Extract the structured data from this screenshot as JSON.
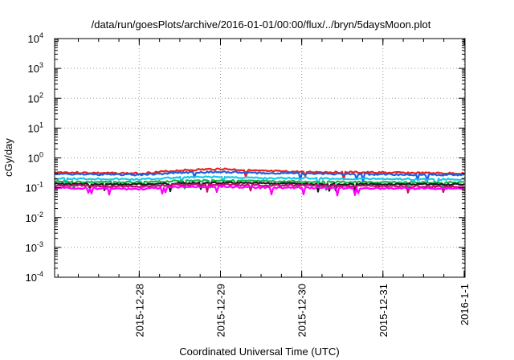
{
  "chart_data": {
    "type": "line",
    "title": "/data/run/goesPlots/archive/2016-01-01/00:00/flux/../bryn/5daysMoon.plot",
    "xlabel": "Coordinated Universal Time (UTC)",
    "ylabel": "cGy/day",
    "y_scale": "log",
    "ylim": [
      0.0001,
      10000
    ],
    "xlim": [
      "2015-12-26T23:00",
      "2016-01-01T00:15"
    ],
    "grid": true,
    "y_ticks": [
      {
        "value": 0.0001,
        "base": "10",
        "exp": "-4"
      },
      {
        "value": 0.001,
        "base": "10",
        "exp": "-3"
      },
      {
        "value": 0.01,
        "base": "10",
        "exp": "-2"
      },
      {
        "value": 0.1,
        "base": "10",
        "exp": "-1"
      },
      {
        "value": 1,
        "base": "10",
        "exp": "0"
      },
      {
        "value": 10,
        "base": "10",
        "exp": "1"
      },
      {
        "value": 100,
        "base": "10",
        "exp": "2"
      },
      {
        "value": 1000,
        "base": "10",
        "exp": "3"
      },
      {
        "value": 10000,
        "base": "10",
        "exp": "4"
      }
    ],
    "x_ticks": [
      {
        "value": "2015-12-28",
        "label": "2015-12-28"
      },
      {
        "value": "2015-12-29",
        "label": "2015-12-29"
      },
      {
        "value": "2015-12-30",
        "label": "2015-12-30"
      },
      {
        "value": "2015-12-31",
        "label": "2015-12-31"
      },
      {
        "value": "2016-01-01",
        "label": "2016-1-1"
      }
    ],
    "series": [
      {
        "color": "#e8211c",
        "x": [
          "2015-12-26T23:00",
          "2015-12-27T12:00",
          "2015-12-28T00:00",
          "2015-12-28T12:00",
          "2015-12-29T00:00",
          "2015-12-29T12:00",
          "2015-12-30T00:00",
          "2015-12-30T12:00",
          "2015-12-31T00:00",
          "2015-12-31T12:00",
          "2016-01-01T00:15"
        ],
        "y": [
          0.33,
          0.31,
          0.3,
          0.38,
          0.43,
          0.36,
          0.34,
          0.33,
          0.32,
          0.31,
          0.3
        ]
      },
      {
        "color": "#1f5fe0",
        "x": [
          "2015-12-26T23:00",
          "2015-12-27T12:00",
          "2015-12-28T00:00",
          "2015-12-28T12:00",
          "2015-12-29T00:00",
          "2015-12-29T12:00",
          "2015-12-30T00:00",
          "2015-12-30T12:00",
          "2015-12-31T00:00",
          "2015-12-31T12:00",
          "2016-01-01T00:15"
        ],
        "y": [
          0.29,
          0.28,
          0.27,
          0.32,
          0.34,
          0.31,
          0.3,
          0.29,
          0.28,
          0.27,
          0.27
        ]
      },
      {
        "color": "#19c8e8",
        "x": [
          "2015-12-26T23:00",
          "2015-12-27T12:00",
          "2015-12-28T00:00",
          "2015-12-28T12:00",
          "2015-12-29T00:00",
          "2015-12-29T12:00",
          "2015-12-30T00:00",
          "2015-12-30T12:00",
          "2015-12-31T00:00",
          "2015-12-31T12:00",
          "2016-01-01T00:15"
        ],
        "y": [
          0.2,
          0.2,
          0.19,
          0.22,
          0.23,
          0.21,
          0.21,
          0.2,
          0.2,
          0.19,
          0.19
        ]
      },
      {
        "color": "#1bb24a",
        "x": [
          "2015-12-26T23:00",
          "2015-12-27T12:00",
          "2015-12-28T00:00",
          "2015-12-28T12:00",
          "2015-12-29T00:00",
          "2015-12-29T12:00",
          "2015-12-30T00:00",
          "2015-12-30T12:00",
          "2015-12-31T00:00",
          "2015-12-31T12:00",
          "2016-01-01T00:15"
        ],
        "y": [
          0.16,
          0.155,
          0.15,
          0.17,
          0.175,
          0.165,
          0.16,
          0.155,
          0.15,
          0.15,
          0.15
        ]
      },
      {
        "color": "#1a1a1a",
        "x": [
          "2015-12-26T23:00",
          "2015-12-27T12:00",
          "2015-12-28T00:00",
          "2015-12-28T12:00",
          "2015-12-29T00:00",
          "2015-12-29T12:00",
          "2015-12-30T00:00",
          "2015-12-30T12:00",
          "2015-12-31T00:00",
          "2015-12-31T12:00",
          "2016-01-01T00:15"
        ],
        "y": [
          0.135,
          0.13,
          0.13,
          0.14,
          0.145,
          0.14,
          0.135,
          0.13,
          0.13,
          0.13,
          0.13
        ]
      },
      {
        "color": "#c01070",
        "x": [
          "2015-12-26T23:00",
          "2015-12-27T12:00",
          "2015-12-28T00:00",
          "2015-12-28T12:00",
          "2015-12-29T00:00",
          "2015-12-29T12:00",
          "2015-12-30T00:00",
          "2015-12-30T12:00",
          "2015-12-31T00:00",
          "2015-12-31T12:00",
          "2016-01-01T00:15"
        ],
        "y": [
          0.12,
          0.115,
          0.11,
          0.125,
          0.13,
          0.12,
          0.12,
          0.115,
          0.115,
          0.11,
          0.11
        ]
      },
      {
        "color": "#ff00ff",
        "x": [
          "2015-12-26T23:00",
          "2015-12-27T12:00",
          "2015-12-28T00:00",
          "2015-12-28T12:00",
          "2015-12-29T00:00",
          "2015-12-29T12:00",
          "2015-12-30T00:00",
          "2015-12-30T12:00",
          "2015-12-31T00:00",
          "2015-12-31T12:00",
          "2016-01-01T00:15"
        ],
        "y": [
          0.1,
          0.095,
          0.09,
          0.105,
          0.11,
          0.1,
          0.1,
          0.097,
          0.095,
          0.095,
          0.095
        ]
      }
    ]
  }
}
